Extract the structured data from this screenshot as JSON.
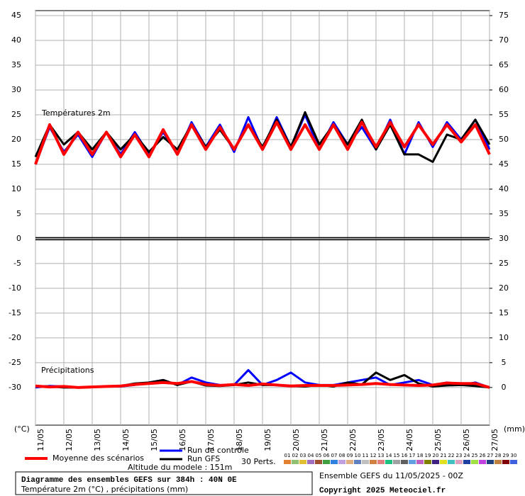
{
  "chart_data": {
    "type": "line",
    "temp_label": "Températures 2m",
    "precip_label": "Précipitations",
    "y_unit": "(°C)",
    "y2_unit": "(mm)",
    "xlim": [
      0,
      16
    ],
    "xticks": [
      {
        "value": 0,
        "label": "11/05"
      },
      {
        "value": 1,
        "label": "12/05"
      },
      {
        "value": 2,
        "label": "13/05"
      },
      {
        "value": 3,
        "label": "14/05"
      },
      {
        "value": 4,
        "label": "15/05"
      },
      {
        "value": 5,
        "label": "16/05"
      },
      {
        "value": 6,
        "label": "17/05"
      },
      {
        "value": 7,
        "label": "18/05"
      },
      {
        "value": 8,
        "label": "19/05"
      },
      {
        "value": 9,
        "label": "20/05"
      },
      {
        "value": 10,
        "label": "21/05"
      },
      {
        "value": 11,
        "label": "22/05"
      },
      {
        "value": 12,
        "label": "23/05"
      },
      {
        "value": 13,
        "label": "24/05"
      },
      {
        "value": 14,
        "label": "25/05"
      },
      {
        "value": 15,
        "label": "26/05"
      },
      {
        "value": 16,
        "label": "27/05"
      }
    ],
    "ylim": [
      -37.6,
      46
    ],
    "yticks": [
      45,
      40,
      35,
      30,
      25,
      20,
      15,
      10,
      5,
      0,
      -5,
      -10,
      -15,
      -20,
      -25,
      -30
    ],
    "y2lim": [
      -7.6,
      76
    ],
    "y2ticks": [
      75,
      70,
      65,
      60,
      55,
      50,
      45,
      40,
      35,
      30,
      25,
      20,
      15,
      10,
      5,
      0
    ],
    "grid": true,
    "x": [
      0,
      0.5,
      1,
      1.5,
      2,
      2.5,
      3,
      3.5,
      4,
      4.5,
      5,
      5.5,
      6,
      6.5,
      7,
      7.5,
      8,
      8.5,
      9,
      9.5,
      10,
      10.5,
      11,
      11.5,
      12,
      12.5,
      13,
      13.5,
      14,
      14.5,
      15,
      15.5,
      16
    ],
    "series": [
      {
        "name": "Run de contrôle",
        "color": "#0000ff",
        "width": 3,
        "values": [
          15,
          22.5,
          17.5,
          21,
          16.5,
          21.5,
          17,
          21.5,
          17,
          21.5,
          17,
          23.5,
          18.5,
          23,
          17.5,
          24.5,
          18,
          24.5,
          18.5,
          25,
          18,
          23.5,
          19,
          22.5,
          18,
          24,
          17,
          23.5,
          18.5,
          23.5,
          20,
          24,
          18
        ],
        "precipitation": [
          0,
          0.3,
          0.2,
          0,
          0.1,
          0.2,
          0.2,
          0.5,
          1,
          1.5,
          0.5,
          2,
          1,
          0.5,
          0.5,
          3.5,
          0.5,
          1.5,
          3,
          1,
          0.5,
          0.5,
          1,
          1.5,
          2,
          0.5,
          1,
          1.5,
          0.5,
          1,
          0.5,
          1,
          0
        ]
      },
      {
        "name": "Run GFS",
        "color": "#000000",
        "width": 3,
        "values": [
          16.5,
          23,
          19,
          21.5,
          18,
          21.5,
          18,
          21,
          17.5,
          20.5,
          18,
          23,
          18.5,
          22,
          18,
          23,
          18.5,
          24,
          18.5,
          25.5,
          19,
          23,
          19,
          24,
          18,
          23,
          17,
          17,
          15.5,
          21,
          20,
          24,
          19
        ],
        "precipitation": [
          0.3,
          0.2,
          0,
          0,
          0.1,
          0.2,
          0.3,
          0.8,
          1,
          1.5,
          0.5,
          1.2,
          0.4,
          0.3,
          0.5,
          1,
          0.5,
          0.5,
          0.3,
          0.2,
          0.5,
          0.2,
          1,
          0.6,
          3,
          1.5,
          2.5,
          0.8,
          0.2,
          0.4,
          0.5,
          0.3,
          0
        ]
      },
      {
        "name": "Moyenne des scénarios",
        "color": "#ff0000",
        "width": 4,
        "values": [
          15,
          23,
          17,
          21.5,
          17,
          21.5,
          16.5,
          21,
          16.5,
          22,
          17,
          23,
          18,
          22.5,
          18,
          23,
          18,
          23.5,
          18,
          23,
          18,
          23,
          18,
          23.5,
          18.5,
          23.5,
          18.5,
          23,
          19,
          23,
          19.5,
          23,
          17
        ],
        "precipitation": [
          0.3,
          0.1,
          0.2,
          0,
          0.1,
          0.2,
          0.3,
          0.6,
          0.8,
          1,
          0.8,
          1.2,
          0.6,
          0.4,
          0.6,
          0.4,
          0.7,
          0.5,
          0.3,
          0.4,
          0.4,
          0.4,
          0.5,
          0.6,
          0.8,
          0.6,
          0.5,
          0.4,
          0.5,
          0.9,
          0.8,
          0.8,
          0
        ]
      }
    ],
    "perturbations": {
      "label": "30 Perts.",
      "members": [
        {
          "name": "01",
          "color": "#e08030"
        },
        {
          "name": "02",
          "color": "#90c070"
        },
        {
          "name": "03",
          "color": "#e0c030"
        },
        {
          "name": "04",
          "color": "#a070c0"
        },
        {
          "name": "05",
          "color": "#a05030"
        },
        {
          "name": "06",
          "color": "#40a040"
        },
        {
          "name": "07",
          "color": "#3080e0"
        },
        {
          "name": "08",
          "color": "#c0a0e0"
        },
        {
          "name": "09",
          "color": "#e0b080"
        },
        {
          "name": "10",
          "color": "#6080c0"
        },
        {
          "name": "11",
          "color": "#c0c0c0"
        },
        {
          "name": "12",
          "color": "#d08040"
        },
        {
          "name": "13",
          "color": "#e08080"
        },
        {
          "name": "14",
          "color": "#20c080"
        },
        {
          "name": "15",
          "color": "#a0a0a0"
        },
        {
          "name": "16",
          "color": "#606060"
        },
        {
          "name": "17",
          "color": "#60a0e0"
        },
        {
          "name": "18",
          "color": "#c060c0"
        },
        {
          "name": "19",
          "color": "#808000"
        },
        {
          "name": "20",
          "color": "#402080"
        },
        {
          "name": "21",
          "color": "#e0e020"
        },
        {
          "name": "22",
          "color": "#40c0c0"
        },
        {
          "name": "23",
          "color": "#e0a0c0"
        },
        {
          "name": "24",
          "color": "#2040a0"
        },
        {
          "name": "25",
          "color": "#a0e040"
        },
        {
          "name": "26",
          "color": "#c040e0"
        },
        {
          "name": "27",
          "color": "#204080"
        },
        {
          "name": "28",
          "color": "#c08040"
        },
        {
          "name": "29",
          "color": "#800000"
        },
        {
          "name": "30",
          "color": "#4060e0"
        }
      ]
    },
    "altitude": "Altitude du modele : 151m",
    "footer_title": "Diagramme des ensembles GEFS sur 384h : 40N 0E",
    "footer_subtitle": "Température 2m (°C) , précipitations (mm)",
    "run_info": "Ensemble GEFS du 11/05/2025 - 00Z",
    "copyright": "Copyright 2025 Meteociel.fr"
  }
}
